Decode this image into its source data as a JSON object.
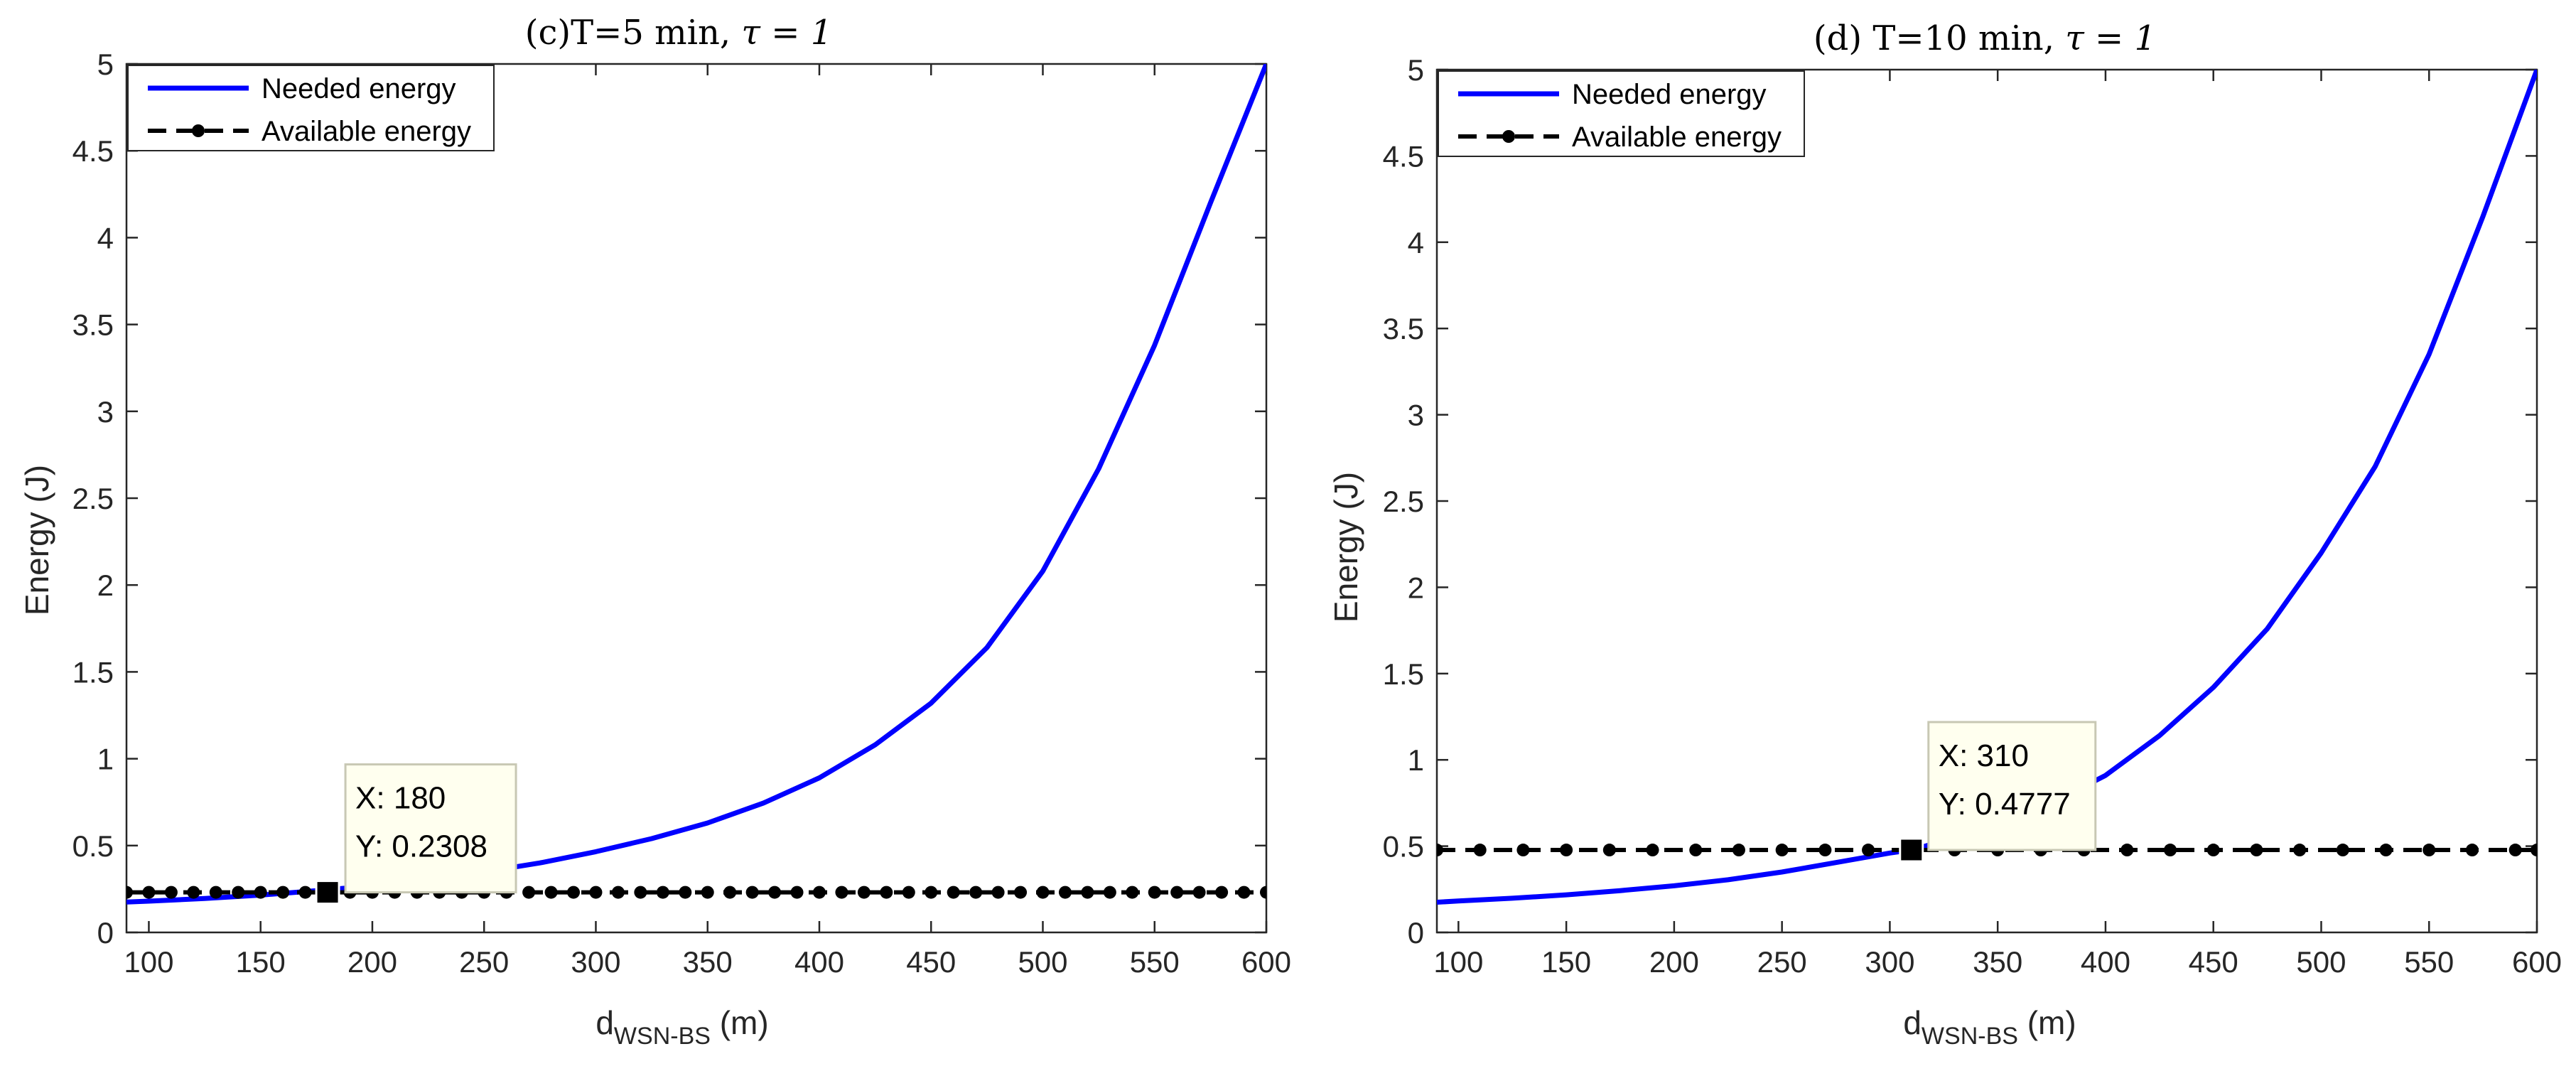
{
  "chart_data": [
    {
      "type": "line",
      "title": "(c)T=5 min, τ = 1",
      "title_prefix": "(c)T=5 min, ",
      "title_math": "τ = 1",
      "xlabel_base": "d",
      "xlabel_sub": "WSN-BS",
      "xlabel_unit": " (m)",
      "ylabel": "Energy (J)",
      "xlim": [
        90,
        600
      ],
      "ylim": [
        0,
        5
      ],
      "xticks": [
        "100",
        "150",
        "200",
        "250",
        "300",
        "350",
        "400",
        "450",
        "500",
        "550",
        "600"
      ],
      "yticks": [
        "0",
        "0.5",
        "1",
        "1.5",
        "2",
        "2.5",
        "3",
        "3.5",
        "4",
        "4.5",
        "5"
      ],
      "legend_position": "top-left",
      "series": [
        {
          "name": "Needed energy",
          "color": "#0000ff",
          "style": "solid",
          "x": [
            90,
            100,
            125,
            150,
            175,
            200,
            225,
            250,
            275,
            300,
            325,
            350,
            375,
            400,
            425,
            450,
            475,
            500,
            525,
            550,
            575,
            600
          ],
          "y": [
            0.175,
            0.18,
            0.195,
            0.215,
            0.24,
            0.268,
            0.305,
            0.348,
            0.4,
            0.465,
            0.54,
            0.63,
            0.745,
            0.89,
            1.08,
            1.32,
            1.64,
            2.08,
            2.67,
            3.38,
            4.2,
            5.0
          ]
        },
        {
          "name": "Available energy",
          "color": "#000000",
          "style": "dashed-dot-markers",
          "x": [
            90,
            100,
            110,
            120,
            130,
            140,
            150,
            160,
            170,
            180,
            190,
            200,
            210,
            220,
            230,
            240,
            250,
            260,
            270,
            280,
            290,
            300,
            310,
            320,
            330,
            340,
            350,
            360,
            370,
            380,
            390,
            400,
            410,
            420,
            430,
            440,
            450,
            460,
            470,
            480,
            490,
            500,
            510,
            520,
            530,
            540,
            550,
            560,
            570,
            580,
            590,
            600
          ],
          "y": [
            0.2308,
            0.2308,
            0.2308,
            0.2308,
            0.2308,
            0.2308,
            0.2308,
            0.2308,
            0.2308,
            0.2308,
            0.2308,
            0.2308,
            0.2308,
            0.2308,
            0.2308,
            0.2308,
            0.2308,
            0.2308,
            0.2308,
            0.2308,
            0.2308,
            0.2308,
            0.2308,
            0.2308,
            0.2308,
            0.2308,
            0.2308,
            0.2308,
            0.2308,
            0.2308,
            0.2308,
            0.2308,
            0.2308,
            0.2308,
            0.2308,
            0.2308,
            0.2308,
            0.2308,
            0.2308,
            0.2308,
            0.2308,
            0.2308,
            0.2308,
            0.2308,
            0.2308,
            0.2308,
            0.2308,
            0.2308,
            0.2308,
            0.2308,
            0.2308,
            0.2308
          ]
        }
      ],
      "datatip": {
        "x": 180,
        "y": 0.2308,
        "x_text": "X: 180",
        "y_text": "Y: 0.2308"
      }
    },
    {
      "type": "line",
      "title": "(d) T=10 min, τ = 1",
      "title_prefix": "(d) T=10 min, ",
      "title_math": "τ = 1",
      "xlabel_base": "d",
      "xlabel_sub": "WSN-BS",
      "xlabel_unit": " (m)",
      "ylabel": "Energy (J)",
      "xlim": [
        90,
        600
      ],
      "ylim": [
        0,
        5
      ],
      "xticks": [
        "100",
        "150",
        "200",
        "250",
        "300",
        "350",
        "400",
        "450",
        "500",
        "550",
        "600"
      ],
      "yticks": [
        "0",
        "0.5",
        "1",
        "1.5",
        "2",
        "2.5",
        "3",
        "3.5",
        "4",
        "4.5",
        "5"
      ],
      "legend_position": "top-left",
      "series": [
        {
          "name": "Needed energy",
          "color": "#0000ff",
          "style": "solid",
          "x": [
            90,
            100,
            125,
            150,
            175,
            200,
            225,
            250,
            275,
            300,
            310,
            325,
            350,
            375,
            400,
            425,
            450,
            475,
            500,
            525,
            550,
            575,
            600
          ],
          "y": [
            0.175,
            0.182,
            0.198,
            0.218,
            0.242,
            0.27,
            0.305,
            0.35,
            0.405,
            0.46,
            0.4777,
            0.53,
            0.63,
            0.75,
            0.91,
            1.14,
            1.42,
            1.76,
            2.2,
            2.7,
            3.35,
            4.15,
            5.0
          ]
        },
        {
          "name": "Available energy",
          "color": "#000000",
          "style": "dashed-dot-markers",
          "x": [
            90,
            110,
            130,
            150,
            170,
            190,
            210,
            230,
            250,
            270,
            290,
            310,
            330,
            350,
            370,
            390,
            410,
            430,
            450,
            470,
            490,
            510,
            530,
            550,
            570,
            590,
            600
          ],
          "y": [
            0.4777,
            0.4777,
            0.4777,
            0.4777,
            0.4777,
            0.4777,
            0.4777,
            0.4777,
            0.4777,
            0.4777,
            0.4777,
            0.4777,
            0.4777,
            0.4777,
            0.4777,
            0.4777,
            0.4777,
            0.4777,
            0.4777,
            0.4777,
            0.4777,
            0.4777,
            0.4777,
            0.4777,
            0.4777,
            0.4777,
            0.4777
          ]
        }
      ],
      "datatip": {
        "x": 310,
        "y": 0.4777,
        "x_text": "X: 310",
        "y_text": "Y: 0.4777"
      }
    }
  ]
}
